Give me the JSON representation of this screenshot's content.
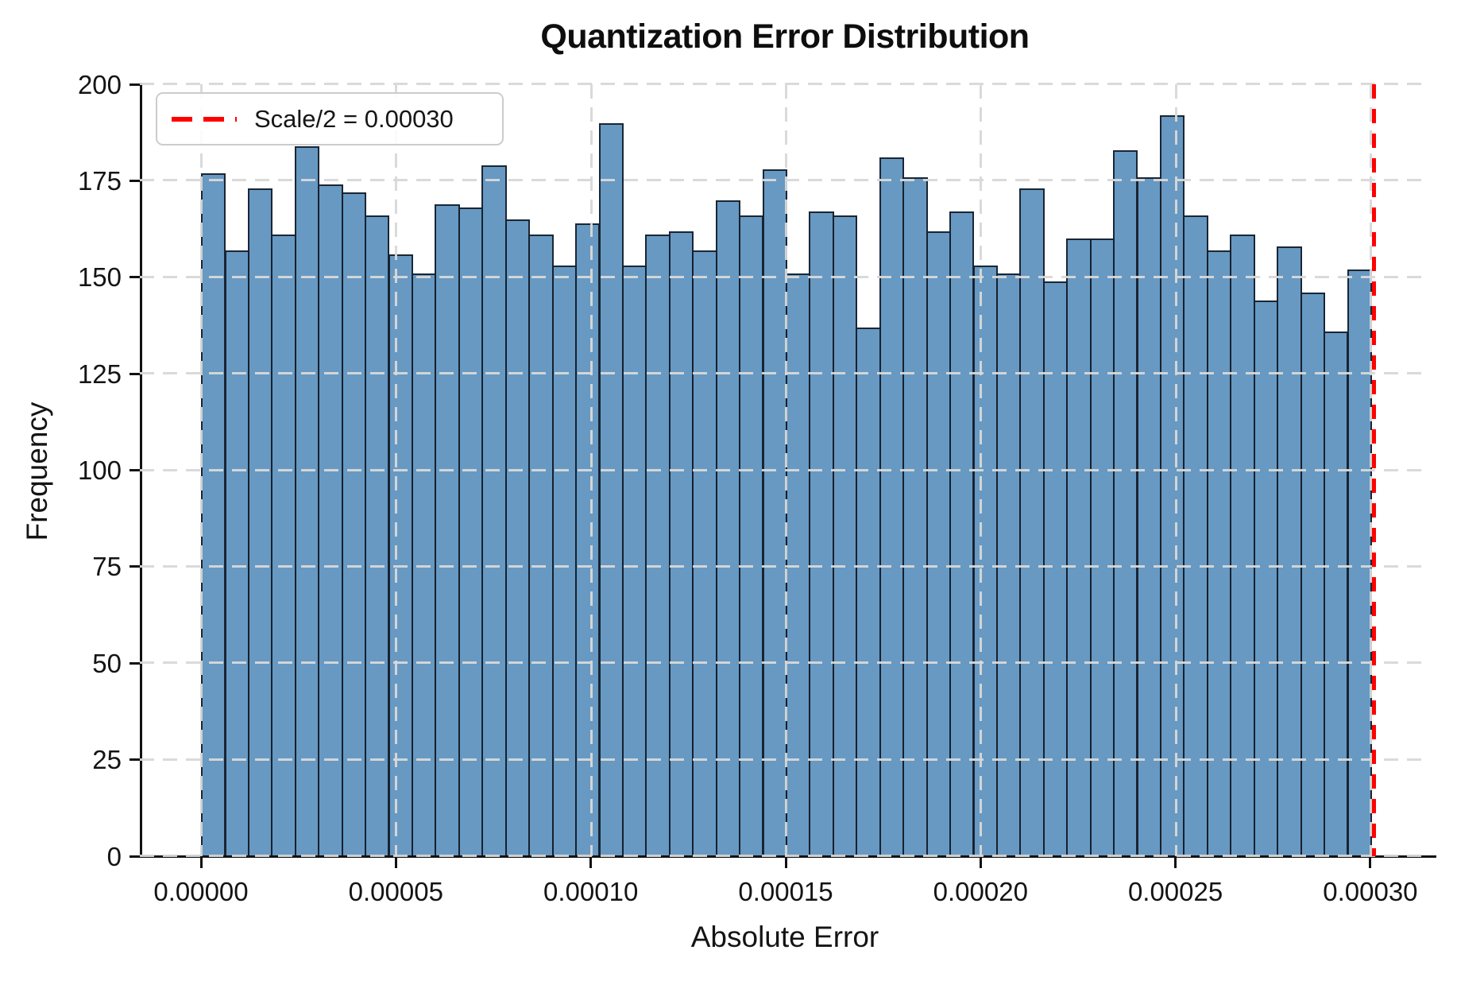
{
  "title": "Quantization Error Distribution",
  "axes": {
    "xlabel": "Absolute Error",
    "ylabel": "Frequency"
  },
  "legend": {
    "label": "Scale/2 = 0.00030"
  },
  "colors": {
    "bar_fill": "#4682B4",
    "bar_fill_alpha": 0.82,
    "bar_edge": "#101620",
    "vline": "#FE0000",
    "grid": "#D8D8D8",
    "spine": "#111111",
    "text": "#141414",
    "legend_border": "#CCCCCC"
  },
  "chart_data": {
    "type": "bar",
    "subtype": "histogram",
    "title": "Quantization Error Distribution",
    "xlabel": "Absolute Error",
    "ylabel": "Frequency",
    "grid": true,
    "legend_position": "upper left",
    "bin_start": 0.0,
    "bin_width": 6e-06,
    "values": [
      177,
      157,
      173,
      161,
      184,
      174,
      172,
      166,
      156,
      151,
      169,
      168,
      179,
      165,
      161,
      153,
      164,
      190,
      153,
      161,
      162,
      157,
      170,
      166,
      178,
      151,
      167,
      166,
      137,
      181,
      176,
      162,
      167,
      153,
      151,
      173,
      149,
      160,
      160,
      183,
      176,
      192,
      166,
      157,
      161,
      144,
      158,
      146,
      136,
      152
    ],
    "x_ticks": [
      0.0,
      5e-05,
      0.0001,
      0.00015,
      0.0002,
      0.00025,
      0.0003
    ],
    "x_tick_labels": [
      "0.00000",
      "0.00005",
      "0.00010",
      "0.00015",
      "0.00020",
      "0.00025",
      "0.00030"
    ],
    "y_ticks": [
      0,
      25,
      50,
      75,
      100,
      125,
      150,
      175,
      200
    ],
    "y_tick_labels": [
      "0",
      "25",
      "50",
      "75",
      "100",
      "125",
      "150",
      "175",
      "200"
    ],
    "xlim": [
      -1.57e-05,
      0.0003153
    ],
    "ylim": [
      0,
      200
    ],
    "vline_x": 0.000301,
    "vline_label": "Scale/2 = 0.00030"
  }
}
